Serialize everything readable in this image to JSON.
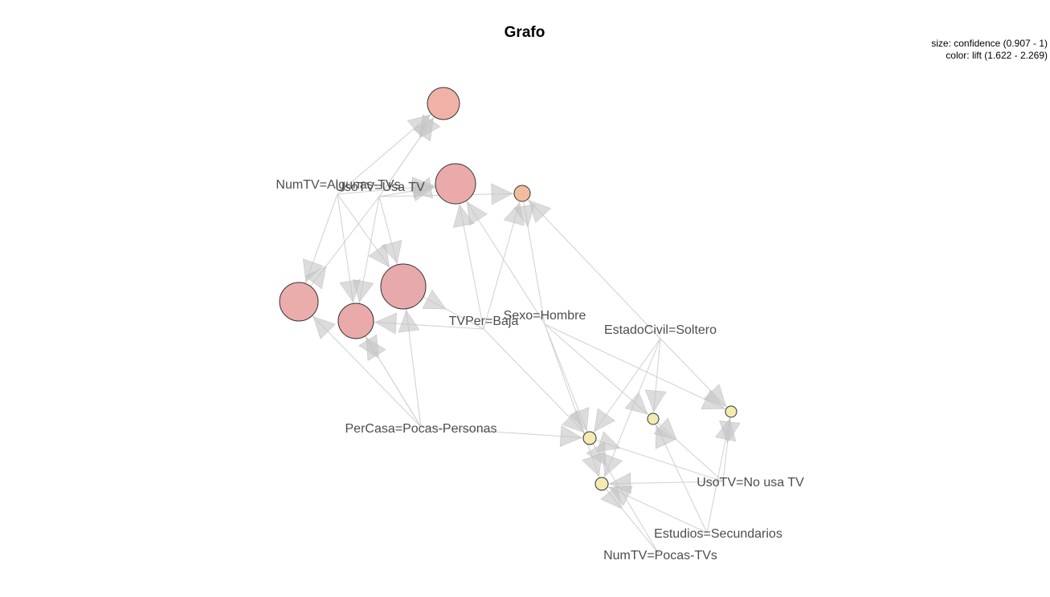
{
  "graph": {
    "title": "Grafo",
    "legend": {
      "size_text": "size: confidence (0.907 - 1)",
      "color_text": "color: lift (1.622 - 2.269)"
    },
    "items": [
      {
        "id": "numtv-algunas",
        "label": "NumTV=Algunas-TVs"
      },
      {
        "id": "usotv-usa",
        "label": "UsoTV=Usa TV"
      },
      {
        "id": "sexo-hombre",
        "label": "Sexo=Hombre"
      },
      {
        "id": "tvper-baja",
        "label": "TVPer=Baja"
      },
      {
        "id": "estadocivil-soltero",
        "label": "EstadoCivil=Soltero"
      },
      {
        "id": "percasa-pocas",
        "label": "PerCasa=Pocas-Personas"
      },
      {
        "id": "usotv-nousa",
        "label": "UsoTV=No usa TV"
      },
      {
        "id": "estudios-secundarios",
        "label": "Estudios=Secundarios"
      },
      {
        "id": "numtv-pocas",
        "label": "NumTV=Pocas-TVs"
      }
    ],
    "rules": [
      {
        "id": "r1",
        "color": "#f0b2a6"
      },
      {
        "id": "r2",
        "color": "#eaaaaa"
      },
      {
        "id": "r3",
        "color": "#f2bc9f"
      },
      {
        "id": "r4",
        "color": "#e8a9ad"
      },
      {
        "id": "r5",
        "color": "#ebadab"
      },
      {
        "id": "r6",
        "color": "#eaaaaa"
      },
      {
        "id": "r7",
        "color": "#f5eab0"
      },
      {
        "id": "r8",
        "color": "#f5eab0"
      },
      {
        "id": "r9",
        "color": "#f5eab0"
      },
      {
        "id": "r10",
        "color": "#f5eab0"
      }
    ]
  }
}
